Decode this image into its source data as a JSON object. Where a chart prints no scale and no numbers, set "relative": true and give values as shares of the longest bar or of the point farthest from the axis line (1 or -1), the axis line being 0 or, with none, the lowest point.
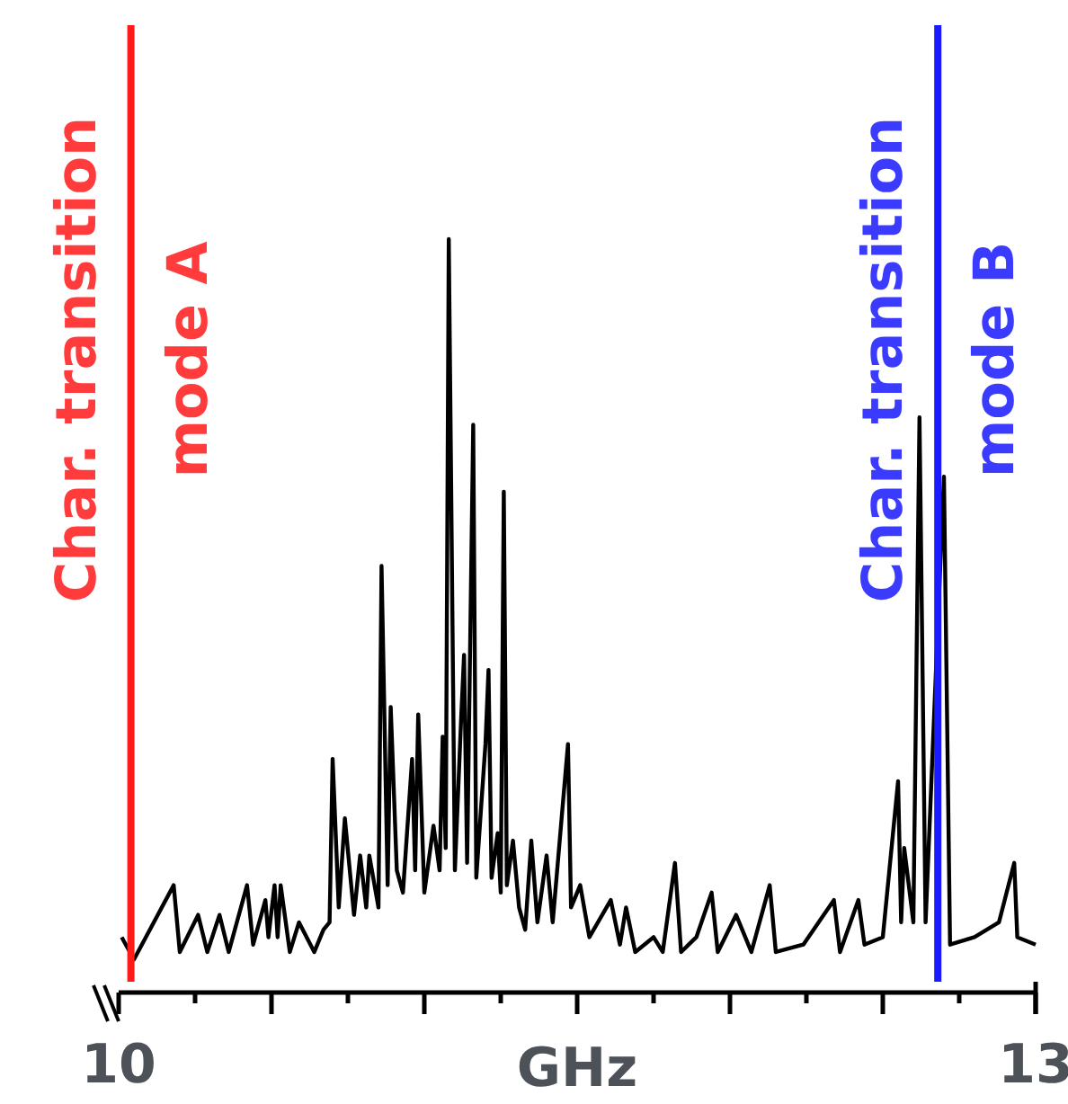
{
  "chart_data": {
    "type": "line",
    "relative": true,
    "xlabel": "GHz",
    "xlim": [
      10,
      13
    ],
    "xticks": [
      10,
      {
        "value": 10.25,
        "label": null
      },
      {
        "value": 10.5,
        "label": null
      },
      {
        "value": 10.75,
        "label": null
      },
      {
        "value": 11,
        "label": null
      },
      {
        "value": 11.25,
        "label": null
      },
      {
        "value": 11.5,
        "label": null
      },
      {
        "value": 11.75,
        "label": null
      },
      {
        "value": 12,
        "label": null
      },
      {
        "value": 12.25,
        "label": null
      },
      {
        "value": 12.5,
        "label": null
      },
      {
        "value": 12.75,
        "label": null
      },
      13
    ],
    "series": [
      {
        "color": "#000000",
        "x": [
          10.01,
          10.05,
          10.18,
          10.2,
          10.26,
          10.29,
          10.33,
          10.36,
          10.42,
          10.44,
          10.48,
          10.49,
          10.51,
          10.52,
          10.53,
          10.56,
          10.59,
          10.64,
          10.67,
          10.69,
          10.7,
          10.72,
          10.74,
          10.77,
          10.79,
          10.81,
          10.82,
          10.85,
          10.86,
          10.88,
          10.89,
          10.91,
          10.93,
          10.96,
          10.97,
          10.98,
          11.0,
          11.03,
          11.05,
          11.06,
          11.07,
          11.08,
          11.1,
          11.12,
          11.13,
          11.14,
          11.16,
          11.17,
          11.2,
          11.21,
          11.22,
          11.24,
          11.25,
          11.26,
          11.27,
          11.29,
          11.31,
          11.33,
          11.35,
          11.37,
          11.4,
          11.42,
          11.47,
          11.48,
          11.51,
          11.54,
          11.61,
          11.64,
          11.66,
          11.69,
          11.75,
          11.78,
          11.82,
          11.84,
          11.89,
          11.94,
          11.96,
          12.02,
          12.07,
          12.13,
          12.15,
          12.24,
          12.34,
          12.36,
          12.42,
          12.44,
          12.5,
          12.55,
          12.56,
          12.57,
          12.6,
          12.62,
          12.64,
          12.7,
          12.72,
          12.8,
          12.88,
          12.93,
          12.94,
          13.0
        ],
        "values": [
          0.06,
          0.03,
          0.13,
          0.04,
          0.09,
          0.04,
          0.09,
          0.04,
          0.13,
          0.05,
          0.11,
          0.06,
          0.13,
          0.06,
          0.13,
          0.04,
          0.08,
          0.04,
          0.07,
          0.08,
          0.3,
          0.1,
          0.22,
          0.09,
          0.17,
          0.1,
          0.17,
          0.1,
          0.56,
          0.13,
          0.37,
          0.15,
          0.12,
          0.3,
          0.15,
          0.36,
          0.12,
          0.21,
          0.15,
          0.33,
          0.18,
          1.0,
          0.15,
          0.35,
          0.44,
          0.16,
          0.75,
          0.14,
          0.32,
          0.42,
          0.14,
          0.2,
          0.12,
          0.66,
          0.13,
          0.19,
          0.1,
          0.07,
          0.19,
          0.08,
          0.17,
          0.08,
          0.32,
          0.1,
          0.13,
          0.06,
          0.11,
          0.05,
          0.1,
          0.04,
          0.06,
          0.04,
          0.16,
          0.04,
          0.06,
          0.12,
          0.04,
          0.09,
          0.04,
          0.13,
          0.04,
          0.05,
          0.11,
          0.04,
          0.11,
          0.05,
          0.06,
          0.27,
          0.08,
          0.18,
          0.08,
          0.76,
          0.08,
          0.68,
          0.05,
          0.06,
          0.08,
          0.16,
          0.06,
          0.05
        ]
      }
    ],
    "ref_lines": [
      {
        "axis": "x",
        "value": 10.04,
        "label": "Char. transition mode A",
        "color": "#ff1a1a"
      },
      {
        "axis": "x",
        "value": 12.68,
        "label": "Char. transition mode B",
        "color": "#1a1aff"
      }
    ]
  }
}
